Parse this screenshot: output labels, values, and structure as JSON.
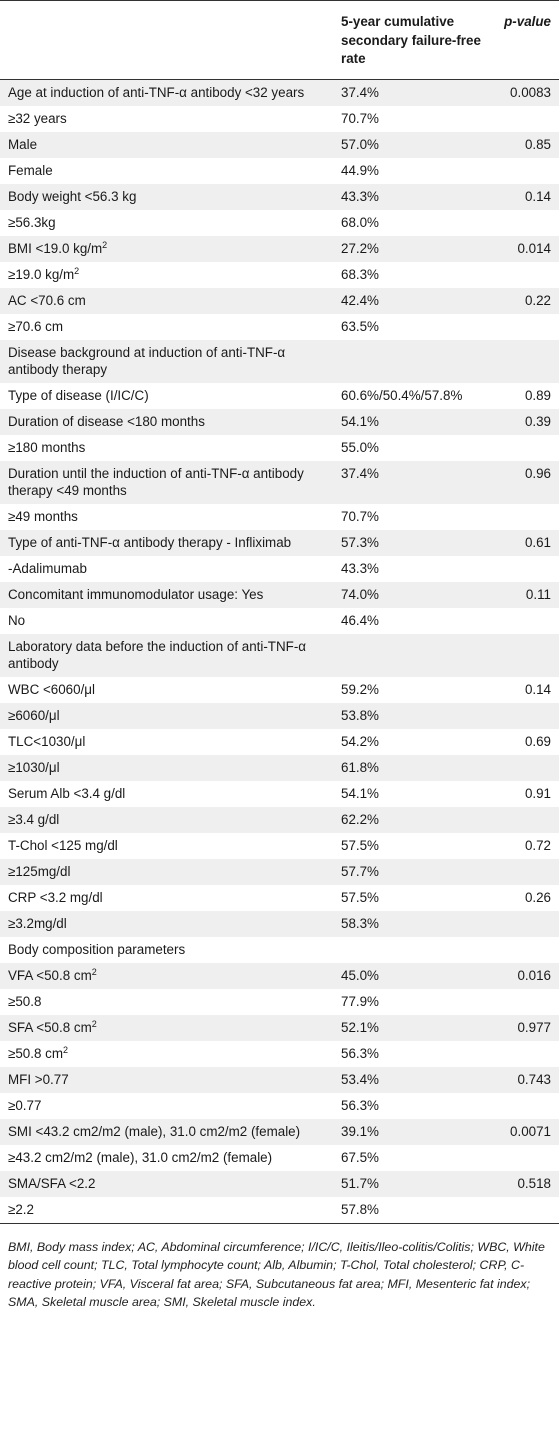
{
  "header": {
    "col_factor": "",
    "col_rate": "5-year cumulative secondary failure-free rate",
    "col_p": "p-value"
  },
  "rows": [
    {
      "factor": "Age at induction of anti-TNF-α antibody <32 years",
      "rate": "37.4%",
      "p": "0.0083"
    },
    {
      "factor": "≥32 years",
      "rate": "70.7%",
      "p": ""
    },
    {
      "factor": "Male",
      "rate": "57.0%",
      "p": "0.85"
    },
    {
      "factor": "Female",
      "rate": "44.9%",
      "p": ""
    },
    {
      "factor": "Body weight <56.3 kg",
      "rate": "43.3%",
      "p": "0.14"
    },
    {
      "factor": "≥56.3kg",
      "rate": "68.0%",
      "p": ""
    },
    {
      "factor": "BMI <19.0 kg/m",
      "sup": "2",
      "rate": "27.2%",
      "p": "0.014"
    },
    {
      "factor": "≥19.0 kg/m",
      "sup": "2",
      "rate": "68.3%",
      "p": ""
    },
    {
      "factor": "AC <70.6 cm",
      "rate": "42.4%",
      "p": "0.22"
    },
    {
      "factor": "≥70.6 cm",
      "rate": "63.5%",
      "p": ""
    },
    {
      "factor": "Disease background at induction of anti-TNF-α antibody therapy",
      "rate": "",
      "p": ""
    },
    {
      "factor": "Type of disease (I/IC/C)",
      "rate": "60.6%/50.4%/57.8%",
      "p": "0.89"
    },
    {
      "factor": "Duration of disease <180 months",
      "rate": "54.1%",
      "p": "0.39"
    },
    {
      "factor": "≥180 months",
      "rate": "55.0%",
      "p": ""
    },
    {
      "factor": "Duration until the induction of anti-TNF-α antibody therapy <49 months",
      "rate": "37.4%",
      "p": "0.96"
    },
    {
      "factor": "≥49 months",
      "rate": "70.7%",
      "p": ""
    },
    {
      "factor": "Type of anti-TNF-α antibody therapy - Infliximab",
      "rate": "57.3%",
      "p": "0.61"
    },
    {
      "factor": "-Adalimumab",
      "rate": "43.3%",
      "p": ""
    },
    {
      "factor": "Concomitant immunomodulator usage: Yes",
      "rate": "74.0%",
      "p": "0.11"
    },
    {
      "factor": "No",
      "rate": "46.4%",
      "p": ""
    },
    {
      "factor": "Laboratory data before the induction of anti-TNF-α antibody",
      "rate": "",
      "p": ""
    },
    {
      "factor": "WBC <6060/μl",
      "rate": "59.2%",
      "p": "0.14"
    },
    {
      "factor": "≥6060/μl",
      "rate": "53.8%",
      "p": ""
    },
    {
      "factor": "TLC<1030/μl",
      "rate": "54.2%",
      "p": "0.69"
    },
    {
      "factor": "≥1030/μl",
      "rate": "61.8%",
      "p": ""
    },
    {
      "factor": "Serum Alb <3.4 g/dl",
      "rate": "54.1%",
      "p": "0.91"
    },
    {
      "factor": "≥3.4 g/dl",
      "rate": "62.2%",
      "p": ""
    },
    {
      "factor": "T-Chol <125 mg/dl",
      "rate": "57.5%",
      "p": "0.72"
    },
    {
      "factor": "≥125mg/dl",
      "rate": "57.7%",
      "p": ""
    },
    {
      "factor": "CRP <3.2 mg/dl",
      "rate": "57.5%",
      "p": "0.26"
    },
    {
      "factor": "≥3.2mg/dl",
      "rate": "58.3%",
      "p": ""
    },
    {
      "factor": "Body composition parameters",
      "rate": "",
      "p": ""
    },
    {
      "factor": "VFA <50.8 cm",
      "sup": "2",
      "rate": "45.0%",
      "p": "0.016"
    },
    {
      "factor": "≥50.8",
      "rate": "77.9%",
      "p": ""
    },
    {
      "factor": "SFA <50.8 cm",
      "sup": "2",
      "rate": "52.1%",
      "p": "0.977"
    },
    {
      "factor": "≥50.8 cm",
      "sup": "2",
      "rate": "56.3%",
      "p": ""
    },
    {
      "factor": "MFI >0.77",
      "rate": "53.4%",
      "p": "0.743"
    },
    {
      "factor": "≥0.77",
      "rate": "56.3%",
      "p": ""
    },
    {
      "factor": "SMI <43.2 cm2/m2 (male), 31.0 cm2/m2 (female)",
      "rate": "39.1%",
      "p": "0.0071"
    },
    {
      "factor": "≥43.2 cm2/m2 (male), 31.0 cm2/m2 (female)",
      "rate": "67.5%",
      "p": ""
    },
    {
      "factor": "SMA/SFA <2.2",
      "rate": "51.7%",
      "p": "0.518"
    },
    {
      "factor": "≥2.2",
      "rate": "57.8%",
      "p": ""
    }
  ],
  "footnote": "BMI, Body mass index; AC, Abdominal circumference; I/IC/C, Ileitis/Ileo-colitis/Colitis; WBC, White blood cell count; TLC, Total lymphocyte count; Alb, Albumin; T-Chol, Total cholesterol; CRP, C-reactive protein; VFA, Visceral fat area; SFA, Subcutaneous fat area; MFI, Mesenteric fat index; SMA, Skeletal muscle area; SMI, Skeletal muscle index."
}
